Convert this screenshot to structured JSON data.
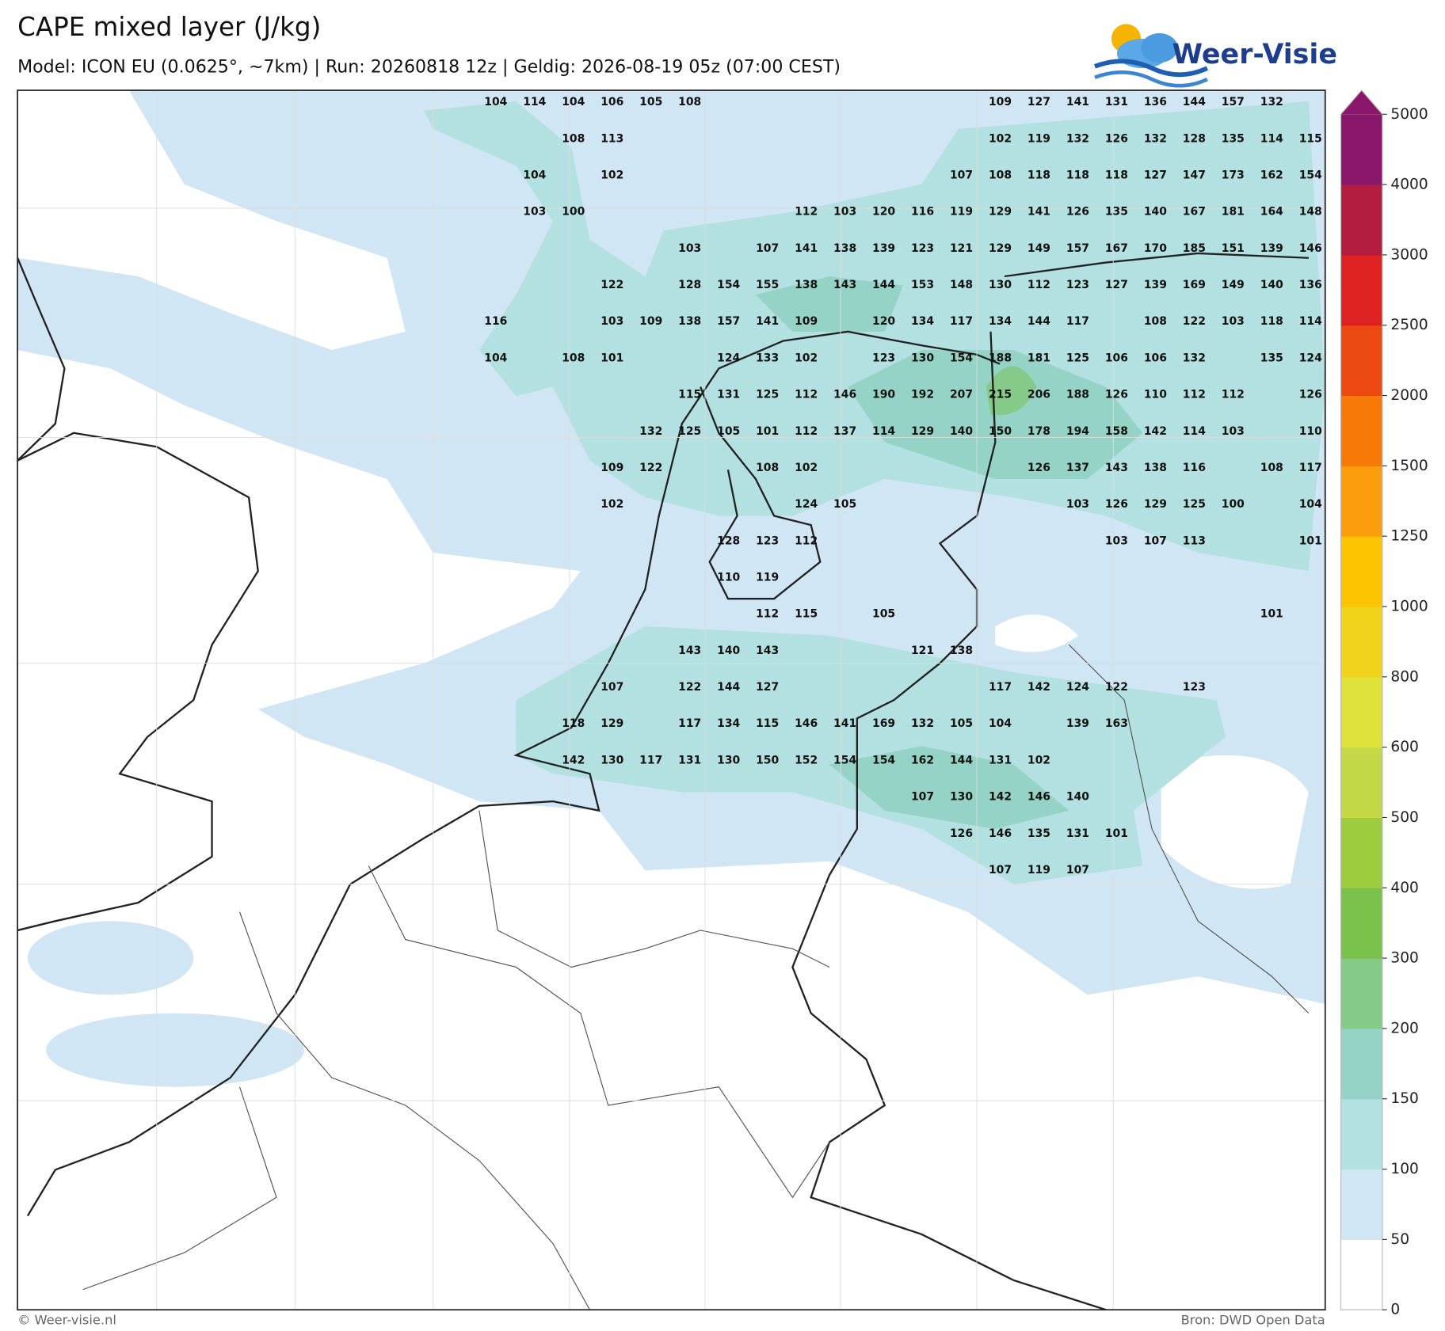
{
  "header": {
    "title": "CAPE mixed layer (J/kg)",
    "subtitle": "Model: ICON EU (0.0625°, ~7km)  |  Run: 20260818 12z  |  Geldig: 2026-08-19 05z (07:00 CEST)"
  },
  "logo": "Weer-Visie",
  "colorbar": {
    "levels": [
      0,
      50,
      100,
      150,
      200,
      300,
      400,
      500,
      600,
      800,
      1000,
      1250,
      1500,
      2000,
      2500,
      3000,
      4000,
      5000
    ],
    "colors": [
      "#ffffff",
      "#d0e6f5",
      "#b3e0e0",
      "#95d3c6",
      "#86ca8a",
      "#7ac24b",
      "#9dcc3f",
      "#c4d847",
      "#dfe03a",
      "#f2d31c",
      "#fcc400",
      "#fb9d0d",
      "#f77a08",
      "#ec4a12",
      "#de2222",
      "#b31e40",
      "#8a176c"
    ]
  },
  "map_labels": [
    [
      104,
      114,
      104,
      106,
      105,
      108,
      null,
      null,
      null,
      null,
      null,
      null,
      null,
      109,
      127,
      141,
      131,
      136,
      144,
      157,
      132,
      null
    ],
    [
      null,
      null,
      108,
      113,
      null,
      null,
      null,
      null,
      null,
      null,
      null,
      null,
      null,
      102,
      119,
      132,
      126,
      132,
      128,
      135,
      114,
      115
    ],
    [
      null,
      104,
      null,
      102,
      null,
      null,
      null,
      null,
      null,
      null,
      null,
      null,
      107,
      108,
      118,
      118,
      118,
      127,
      147,
      173,
      162,
      154
    ],
    [
      null,
      103,
      100,
      null,
      null,
      null,
      null,
      null,
      112,
      103,
      120,
      116,
      119,
      129,
      141,
      126,
      135,
      140,
      167,
      181,
      164,
      148
    ],
    [
      null,
      null,
      null,
      null,
      null,
      103,
      null,
      107,
      141,
      138,
      139,
      123,
      121,
      129,
      149,
      157,
      167,
      170,
      185,
      151,
      139,
      146
    ],
    [
      null,
      null,
      null,
      122,
      null,
      128,
      154,
      155,
      138,
      143,
      144,
      153,
      148,
      130,
      112,
      123,
      127,
      139,
      169,
      149,
      140,
      136
    ],
    [
      116,
      null,
      null,
      103,
      109,
      138,
      157,
      141,
      109,
      null,
      120,
      134,
      117,
      134,
      144,
      117,
      null,
      108,
      122,
      103,
      118,
      114
    ],
    [
      104,
      null,
      108,
      101,
      null,
      null,
      124,
      133,
      102,
      null,
      123,
      130,
      154,
      188,
      181,
      125,
      106,
      106,
      132,
      null,
      135,
      124
    ],
    [
      null,
      null,
      null,
      null,
      null,
      115,
      131,
      125,
      112,
      146,
      190,
      192,
      207,
      215,
      206,
      188,
      126,
      110,
      112,
      112,
      null,
      126
    ],
    [
      null,
      null,
      null,
      null,
      132,
      125,
      105,
      101,
      112,
      137,
      114,
      129,
      140,
      150,
      178,
      194,
      158,
      142,
      114,
      103,
      null,
      110
    ],
    [
      null,
      null,
      null,
      109,
      122,
      null,
      null,
      108,
      102,
      null,
      null,
      null,
      null,
      null,
      126,
      137,
      143,
      138,
      116,
      null,
      108,
      117
    ],
    [
      null,
      null,
      null,
      102,
      null,
      null,
      null,
      null,
      124,
      105,
      null,
      null,
      null,
      null,
      null,
      103,
      126,
      129,
      125,
      100,
      null,
      104
    ],
    [
      null,
      null,
      null,
      null,
      null,
      null,
      128,
      123,
      112,
      null,
      null,
      null,
      null,
      null,
      null,
      null,
      103,
      107,
      113,
      null,
      null,
      101
    ],
    [
      null,
      null,
      null,
      null,
      null,
      null,
      110,
      119,
      null,
      null,
      null,
      null,
      null,
      null,
      null,
      null,
      null,
      null,
      null,
      null,
      null,
      null
    ],
    [
      null,
      null,
      null,
      null,
      null,
      null,
      null,
      112,
      115,
      null,
      105,
      null,
      null,
      null,
      null,
      null,
      null,
      null,
      null,
      null,
      101,
      null
    ],
    [
      null,
      null,
      null,
      null,
      null,
      143,
      140,
      143,
      null,
      null,
      null,
      121,
      138,
      null,
      null,
      null,
      null,
      null,
      null,
      null,
      null,
      null
    ],
    [
      null,
      null,
      null,
      107,
      null,
      122,
      144,
      127,
      null,
      null,
      null,
      null,
      null,
      117,
      142,
      124,
      122,
      null,
      123,
      null,
      null,
      null
    ],
    [
      null,
      null,
      118,
      129,
      null,
      117,
      134,
      115,
      146,
      141,
      169,
      132,
      105,
      104,
      null,
      139,
      163,
      null,
      null,
      null,
      null,
      null
    ],
    [
      null,
      null,
      142,
      130,
      117,
      131,
      130,
      150,
      152,
      154,
      154,
      162,
      144,
      131,
      102,
      null,
      null,
      null,
      null,
      null,
      null,
      null
    ],
    [
      null,
      null,
      null,
      null,
      null,
      null,
      null,
      null,
      null,
      null,
      null,
      107,
      130,
      142,
      146,
      140,
      null,
      null,
      null,
      null,
      null,
      null
    ],
    [
      null,
      null,
      null,
      null,
      null,
      null,
      null,
      null,
      null,
      null,
      null,
      null,
      126,
      146,
      135,
      131,
      101,
      null,
      null,
      null,
      null,
      null
    ],
    [
      null,
      null,
      null,
      null,
      null,
      null,
      null,
      null,
      null,
      null,
      null,
      null,
      null,
      107,
      119,
      107,
      null,
      null,
      null,
      null,
      null,
      null
    ]
  ],
  "footer": {
    "left": "© Weer-visie.nl",
    "right": "Bron: DWD Open Data"
  }
}
